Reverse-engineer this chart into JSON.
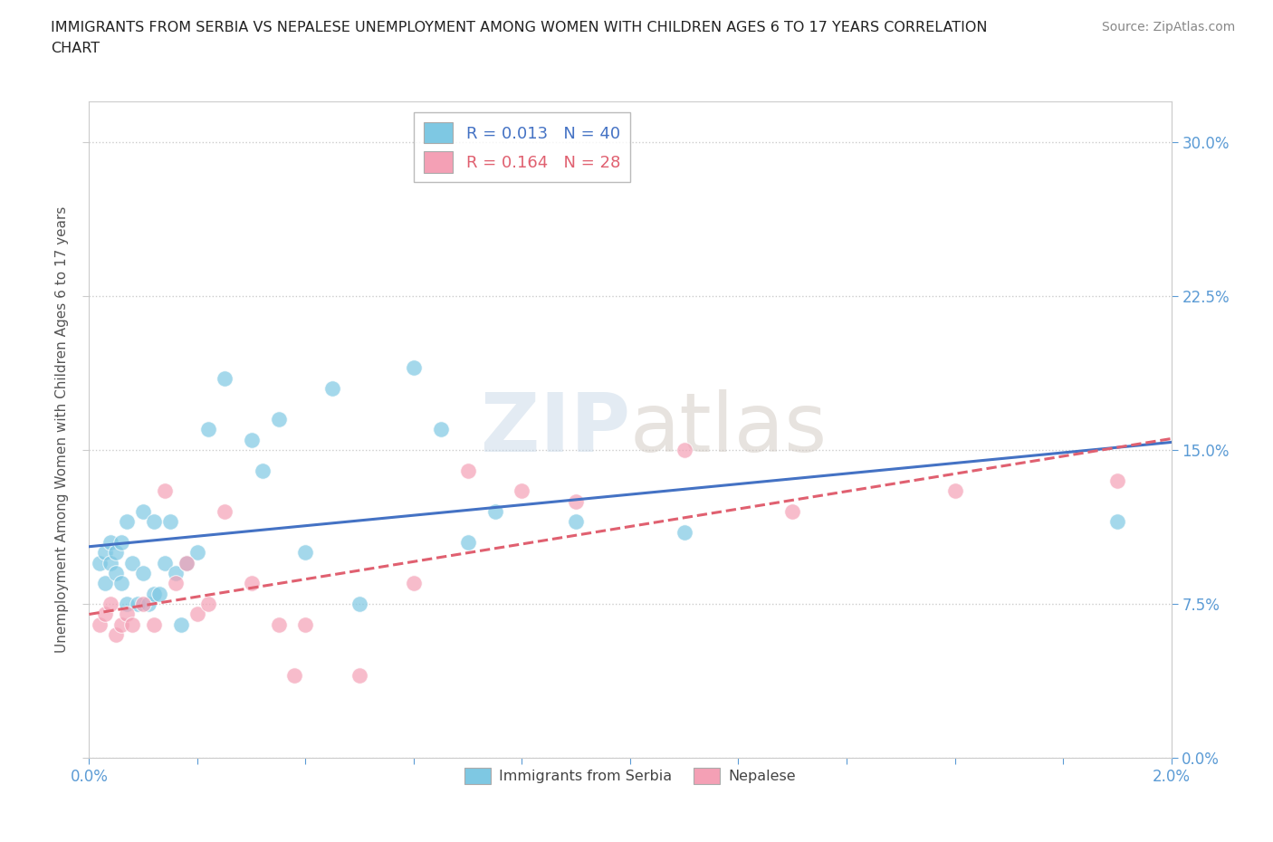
{
  "title": "IMMIGRANTS FROM SERBIA VS NEPALESE UNEMPLOYMENT AMONG WOMEN WITH CHILDREN AGES 6 TO 17 YEARS CORRELATION\nCHART",
  "source_text": "Source: ZipAtlas.com",
  "ylabel": "Unemployment Among Women with Children Ages 6 to 17 years",
  "watermark": "ZIPatlas",
  "serbia_R": "0.013",
  "serbia_N": "40",
  "nepal_R": "0.164",
  "nepal_N": "28",
  "xlim": [
    0.0,
    0.02
  ],
  "ylim": [
    0.0,
    0.32
  ],
  "xticks": [
    0.0,
    0.002,
    0.004,
    0.006,
    0.008,
    0.01,
    0.012,
    0.014,
    0.016,
    0.018,
    0.02
  ],
  "yticks": [
    0.0,
    0.075,
    0.15,
    0.225,
    0.3
  ],
  "ytick_labels": [
    "0.0%",
    "7.5%",
    "15.0%",
    "22.5%",
    "30.0%"
  ],
  "xtick_labels": [
    "0.0%",
    "",
    "",
    "",
    "",
    "",
    "",
    "",
    "",
    "",
    "2.0%"
  ],
  "color_serbia": "#7ec8e3",
  "color_nepal": "#f4a0b5",
  "color_serbia_line": "#4472C4",
  "color_nepal_line": "#E06070",
  "serbia_x": [
    0.0002,
    0.0003,
    0.0003,
    0.0004,
    0.0004,
    0.0005,
    0.0005,
    0.0006,
    0.0006,
    0.0007,
    0.0007,
    0.0008,
    0.0009,
    0.001,
    0.001,
    0.0011,
    0.0012,
    0.0012,
    0.0013,
    0.0014,
    0.0015,
    0.0016,
    0.0017,
    0.0018,
    0.002,
    0.0022,
    0.0025,
    0.003,
    0.0032,
    0.0035,
    0.004,
    0.0045,
    0.005,
    0.006,
    0.0065,
    0.007,
    0.0075,
    0.009,
    0.011,
    0.019
  ],
  "serbia_y": [
    0.095,
    0.1,
    0.085,
    0.095,
    0.105,
    0.09,
    0.1,
    0.085,
    0.105,
    0.075,
    0.115,
    0.095,
    0.075,
    0.12,
    0.09,
    0.075,
    0.08,
    0.115,
    0.08,
    0.095,
    0.115,
    0.09,
    0.065,
    0.095,
    0.1,
    0.16,
    0.185,
    0.155,
    0.14,
    0.165,
    0.1,
    0.18,
    0.075,
    0.19,
    0.16,
    0.105,
    0.12,
    0.115,
    0.11,
    0.115
  ],
  "nepal_x": [
    0.0002,
    0.0003,
    0.0004,
    0.0005,
    0.0006,
    0.0007,
    0.0008,
    0.001,
    0.0012,
    0.0014,
    0.0016,
    0.0018,
    0.002,
    0.0022,
    0.0025,
    0.003,
    0.0035,
    0.0038,
    0.004,
    0.005,
    0.006,
    0.007,
    0.008,
    0.009,
    0.011,
    0.013,
    0.016,
    0.019
  ],
  "nepal_y": [
    0.065,
    0.07,
    0.075,
    0.06,
    0.065,
    0.07,
    0.065,
    0.075,
    0.065,
    0.13,
    0.085,
    0.095,
    0.07,
    0.075,
    0.12,
    0.085,
    0.065,
    0.04,
    0.065,
    0.04,
    0.085,
    0.14,
    0.13,
    0.125,
    0.15,
    0.12,
    0.13,
    0.135
  ],
  "legend_label_serbia": "Immigrants from Serbia",
  "legend_label_nepal": "Nepalese",
  "axis_color": "#5b9bd5",
  "grid_color": "#cccccc",
  "title_color": "#222222",
  "source_color": "#888888"
}
